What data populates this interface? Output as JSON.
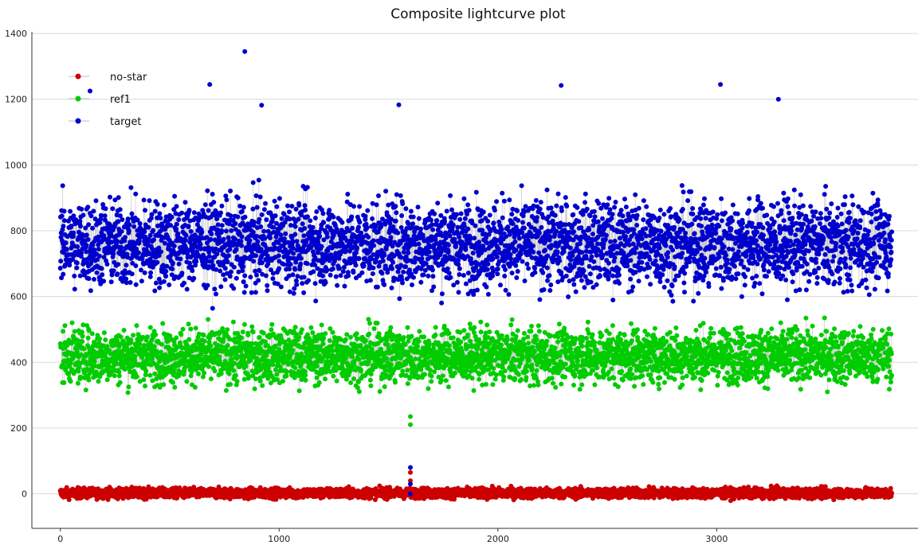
{
  "chart_data": {
    "type": "scatter",
    "title": "Composite lightcurve plot",
    "xlabel": "",
    "ylabel": "",
    "xlim": [
      -130,
      3920
    ],
    "ylim": [
      -105,
      1405
    ],
    "x_ticks": [
      0,
      1000,
      2000,
      3000
    ],
    "x_tick_labels": [
      "0",
      "1000",
      "2000",
      "3000"
    ],
    "y_ticks": [
      0,
      200,
      400,
      600,
      800,
      1000,
      1200,
      1400
    ],
    "y_tick_labels": [
      "0",
      "200",
      "400",
      "600",
      "800",
      "1000",
      "1200",
      "1400"
    ],
    "grid": "horizontal",
    "legend_position": "top-left",
    "point_count_per_series": 3800,
    "series": [
      {
        "name": "no-star",
        "color": "#cc0000",
        "mean": 2,
        "spread": 14,
        "x_range": [
          0,
          3800
        ],
        "outliers": [
          [
            1600,
            40
          ],
          [
            1600,
            65
          ]
        ]
      },
      {
        "name": "ref1",
        "color": "#00cc00",
        "mean": 420,
        "spread": 75,
        "x_range": [
          0,
          3800
        ],
        "outliers": [
          [
            1600,
            235
          ],
          [
            1600,
            210
          ]
        ]
      },
      {
        "name": "target",
        "color": "#0000cc",
        "mean": 760,
        "spread": 120,
        "x_range": [
          0,
          3800
        ],
        "outliers": [
          [
            843,
            1345
          ],
          [
            1600,
            80
          ],
          [
            1600,
            30
          ],
          [
            1600,
            0
          ],
          [
            683,
            1245
          ],
          [
            3017,
            1245
          ],
          [
            2289,
            1242
          ],
          [
            3282,
            1200
          ],
          [
            136,
            1225
          ],
          [
            1547,
            1183
          ],
          [
            920,
            1182
          ]
        ]
      }
    ]
  }
}
